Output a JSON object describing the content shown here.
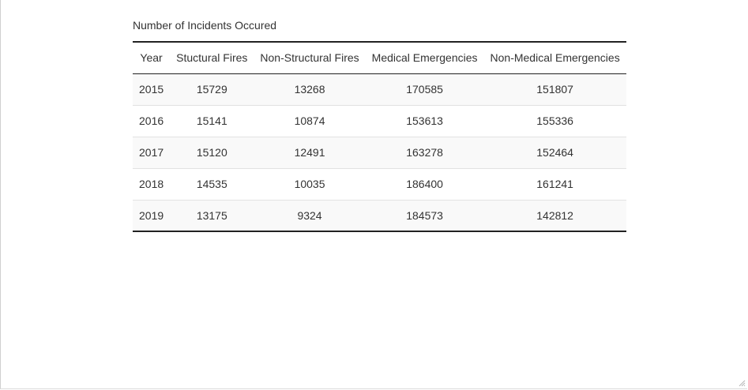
{
  "table": {
    "caption": "Number of Incidents Occured",
    "columns": [
      "Year",
      "Stuctural Fires",
      "Non-Structural Fires",
      "Medical Emergencies",
      "Non-Medical Emergencies"
    ],
    "rows": [
      [
        "2015",
        "15729",
        "13268",
        "170585",
        "151807"
      ],
      [
        "2016",
        "15141",
        "10874",
        "153613",
        "155336"
      ],
      [
        "2017",
        "15120",
        "12491",
        "163278",
        "152464"
      ],
      [
        "2018",
        "14535",
        "10035",
        "186400",
        "161241"
      ],
      [
        "2019",
        "13175",
        "9324",
        "184573",
        "142812"
      ]
    ]
  },
  "icons": {
    "resize_grip": "resize-grip-icon"
  },
  "colors": {
    "rule_dark": "#222222",
    "row_stripe": "#f9f9f9",
    "text": "#333333"
  }
}
